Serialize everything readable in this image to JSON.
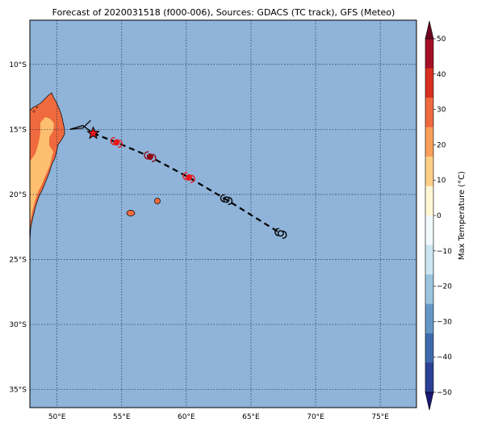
{
  "title": "Forecast of 2020031518 (f000-006), Sources: GDACS (TC track), GFS (Meteo)",
  "colorbar": {
    "label": "Max Temperature (°C)",
    "ticks": [
      "50",
      "40",
      "30",
      "20",
      "10",
      "0",
      "−10",
      "−20",
      "−30",
      "−40",
      "−50"
    ],
    "colors": [
      "#1a1a75",
      "#2a3f95",
      "#3e6aad",
      "#6597c6",
      "#9cc4de",
      "#cce6f1",
      "#f2fafd",
      "#fff6d4",
      "#fdcf86",
      "#f9a05a",
      "#ef6a3e",
      "#d7301f",
      "#a50f26",
      "#6d0521"
    ]
  },
  "map": {
    "extent": {
      "lon": [
        47.9,
        77.8
      ],
      "lat": [
        -36.4,
        -6.6
      ]
    },
    "ocean_color": "#8fb3d9",
    "lon_labels": [
      "50°E",
      "55°E",
      "60°E",
      "65°E",
      "70°E",
      "75°E"
    ],
    "lat_labels": [
      "10°S",
      "15°S",
      "20°S",
      "25°S",
      "30°S",
      "35°S"
    ],
    "lon_values": [
      50,
      55,
      60,
      65,
      70,
      75
    ],
    "lat_values": [
      -10,
      -15,
      -20,
      -25,
      -30,
      -35
    ],
    "track_observed": [
      [
        51.0,
        -15.0
      ],
      [
        52.0,
        -14.7
      ],
      [
        52.8,
        -15.3
      ]
    ],
    "track_forecast": [
      [
        52.8,
        -15.3
      ],
      [
        54.6,
        -16.0
      ],
      [
        57.2,
        -17.1
      ],
      [
        60.2,
        -18.7
      ],
      [
        63.1,
        -20.4
      ],
      [
        67.3,
        -23.0
      ]
    ],
    "current_position": {
      "lon": 52.8,
      "lat": -15.3
    },
    "forecast_points": [
      {
        "lon": 54.6,
        "lat": -16.0,
        "color": "#e8181c"
      },
      {
        "lon": 57.2,
        "lat": -17.1,
        "color": "#8c0a14"
      },
      {
        "lon": 60.2,
        "lat": -18.7,
        "color": "#e8181c"
      },
      {
        "lon": 63.1,
        "lat": -20.4,
        "color": "#000000"
      },
      {
        "lon": 67.3,
        "lat": -23.0,
        "color": "#000000"
      }
    ]
  }
}
